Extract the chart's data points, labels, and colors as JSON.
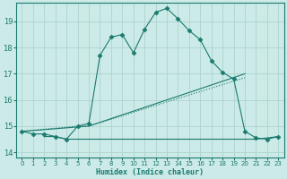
{
  "xlabel": "Humidex (Indice chaleur)",
  "bg_color": "#cceae7",
  "grid_color": "#aed4d0",
  "line_color": "#1a7a6e",
  "xlim": [
    -0.5,
    23.5
  ],
  "ylim": [
    13.8,
    19.7
  ],
  "xticks": [
    0,
    1,
    2,
    3,
    4,
    5,
    6,
    7,
    8,
    9,
    10,
    11,
    12,
    13,
    14,
    15,
    16,
    17,
    18,
    19,
    20,
    21,
    22,
    23
  ],
  "yticks": [
    14,
    15,
    16,
    17,
    18,
    19
  ],
  "series_main": {
    "x": [
      0,
      1,
      2,
      3,
      4,
      5,
      6,
      7,
      8,
      9,
      10,
      11,
      12,
      13,
      14,
      15,
      16,
      17,
      18,
      19,
      20,
      21,
      22,
      23
    ],
    "y": [
      14.8,
      14.7,
      14.7,
      14.6,
      14.5,
      15.0,
      15.1,
      17.7,
      18.4,
      18.5,
      17.8,
      18.7,
      19.35,
      19.5,
      19.1,
      18.65,
      18.3,
      17.5,
      17.05,
      16.8,
      14.8,
      14.55,
      14.5,
      14.6
    ]
  },
  "series_diagonal": {
    "x": [
      0,
      5,
      6,
      20
    ],
    "y": [
      14.8,
      15.0,
      15.0,
      16.85
    ]
  },
  "series_diagonal2": {
    "x": [
      0,
      6,
      20
    ],
    "y": [
      14.8,
      15.0,
      17.0
    ]
  },
  "series_flat": {
    "x": [
      2,
      3,
      4,
      5,
      14,
      19,
      21,
      23
    ],
    "y": [
      14.6,
      14.6,
      14.5,
      14.5,
      14.5,
      14.5,
      14.5,
      14.6
    ]
  }
}
